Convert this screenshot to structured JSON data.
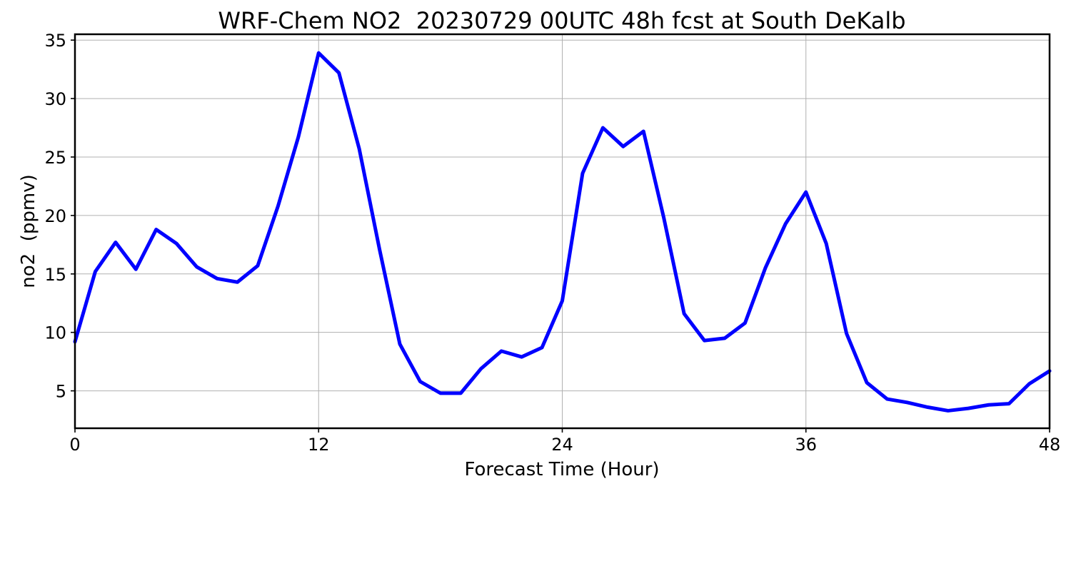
{
  "chart_data": {
    "type": "line",
    "title": "WRF-Chem NO2  20230729 00UTC 48h fcst at South DeKalb",
    "xlabel": "Forecast Time (Hour)",
    "ylabel": "no2  (ppmv)",
    "xlim": [
      0,
      48
    ],
    "ylim": [
      1.8,
      35.5
    ],
    "xticks": [
      0,
      12,
      24,
      36,
      48
    ],
    "yticks": [
      5,
      10,
      15,
      20,
      25,
      30,
      35
    ],
    "grid": true,
    "legend": "none",
    "series": [
      {
        "color": "#0000ff",
        "x": [
          0,
          1,
          2,
          3,
          4,
          5,
          6,
          7,
          8,
          9,
          10,
          11,
          12,
          13,
          14,
          15,
          16,
          17,
          18,
          19,
          20,
          21,
          22,
          23,
          24,
          25,
          26,
          27,
          28,
          29,
          30,
          31,
          32,
          33,
          34,
          35,
          36,
          37,
          38,
          39,
          40,
          41,
          42,
          43,
          44,
          45,
          46,
          47,
          48
        ],
        "y": [
          9.2,
          15.2,
          17.7,
          15.4,
          18.8,
          17.6,
          15.6,
          14.6,
          14.3,
          15.7,
          20.8,
          26.7,
          33.9,
          32.2,
          25.7,
          17.1,
          9.0,
          5.8,
          4.8,
          4.8,
          6.9,
          8.4,
          7.9,
          8.7,
          12.7,
          23.6,
          27.5,
          25.9,
          27.2,
          19.8,
          11.6,
          9.3,
          9.5,
          10.8,
          15.5,
          19.3,
          22.0,
          17.6,
          9.9,
          5.7,
          4.3,
          4.0,
          3.6,
          3.3,
          3.5,
          3.8,
          3.9,
          5.6,
          6.7
        ]
      }
    ]
  }
}
